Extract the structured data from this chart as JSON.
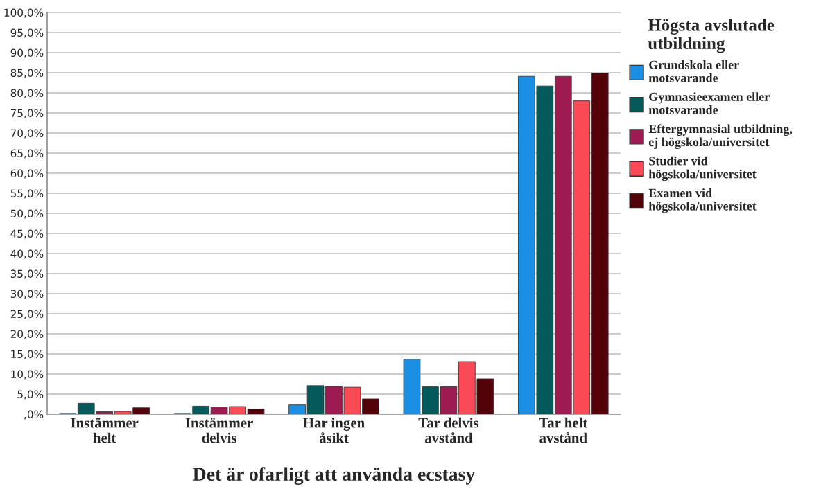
{
  "chart_data": {
    "type": "bar",
    "xlabel": "Det är ofarligt att använda ecstasy",
    "legend_title": "Högsta avslutade\nutbildning",
    "categories": [
      "Instämmer\nhelt",
      "Instämmer\ndelvis",
      "Har ingen\nåsikt",
      "Tar delvis\navstånd",
      "Tar helt\navstånd"
    ],
    "series": [
      {
        "name": "Grundskola eller\nmotsvarande",
        "color": "#1a8fe3",
        "values": [
          0.2,
          0.2,
          2.3,
          13.7,
          84.1
        ]
      },
      {
        "name": "Gymnasieexamen eller\nmotsvarande",
        "color": "#04595a",
        "values": [
          2.7,
          2.0,
          7.1,
          6.8,
          81.7
        ]
      },
      {
        "name": "Eftergymnasial utbildning,\nej högskola/universitet",
        "color": "#9e1b52",
        "values": [
          0.6,
          1.8,
          6.9,
          6.8,
          84.1
        ]
      },
      {
        "name": "Studier vid\nhögskola/universitet",
        "color": "#fa4a55",
        "values": [
          0.7,
          1.9,
          6.7,
          13.1,
          78.0
        ]
      },
      {
        "name": "Examen vid\nhögskola/universitet",
        "color": "#540008",
        "values": [
          1.6,
          1.3,
          3.8,
          8.8,
          84.9
        ]
      }
    ],
    "ylim": [
      0,
      100
    ],
    "yticks": [
      {
        "value": 0,
        "label": ",0%"
      },
      {
        "value": 5,
        "label": "5,0%"
      },
      {
        "value": 10,
        "label": "10,0%"
      },
      {
        "value": 15,
        "label": "15,0%"
      },
      {
        "value": 20,
        "label": "20,0%"
      },
      {
        "value": 25,
        "label": "25,0%"
      },
      {
        "value": 30,
        "label": "30,0%"
      },
      {
        "value": 35,
        "label": "35,0%"
      },
      {
        "value": 40,
        "label": "40,0%"
      },
      {
        "value": 45,
        "label": "45,0%"
      },
      {
        "value": 50,
        "label": "50,0%"
      },
      {
        "value": 55,
        "label": "55,0%"
      },
      {
        "value": 60,
        "label": "60,0%"
      },
      {
        "value": 65,
        "label": "65,0%"
      },
      {
        "value": 70,
        "label": "70,0%"
      },
      {
        "value": 75,
        "label": "75,0%"
      },
      {
        "value": 80,
        "label": "80,0%"
      },
      {
        "value": 85,
        "label": "85,0%"
      },
      {
        "value": 90,
        "label": "90,0%"
      },
      {
        "value": 95,
        "label": "95,0%"
      },
      {
        "value": 100,
        "label": "100,0%"
      }
    ],
    "grid": "y",
    "legend": "right"
  }
}
